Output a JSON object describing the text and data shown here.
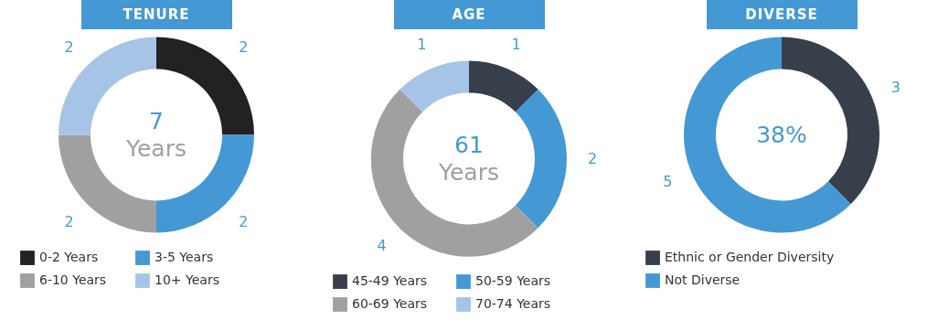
{
  "chart_data": [
    {
      "type": "donut",
      "title": "TENURE",
      "categories": [
        "0-2 Years",
        "3-5 Years",
        "6-10 Years",
        "10+ Years"
      ],
      "values": [
        2,
        2,
        2,
        2
      ],
      "colors": [
        "#222222",
        "#4499d4",
        "#a0a0a0",
        "#a6c4e6"
      ],
      "annotations": [
        "7",
        "Years"
      ],
      "data_labels": true,
      "legend": "bottom"
    },
    {
      "type": "donut",
      "title": "AGE",
      "categories": [
        "45-49 Years",
        "50-59 Years",
        "60-69 Years",
        "70-74 Years"
      ],
      "values": [
        1,
        2,
        4,
        1
      ],
      "colors": [
        "#363f4a",
        "#4499d4",
        "#a0a0a0",
        "#a6c4e6"
      ],
      "annotations": [
        "61",
        "Years"
      ],
      "data_labels": true,
      "legend": "bottom"
    },
    {
      "type": "donut",
      "title": "DIVERSE",
      "categories": [
        "Ethnic or Gender Diversity",
        "Not Diverse"
      ],
      "values": [
        3,
        5
      ],
      "colors": [
        "#363f4a",
        "#4499d4"
      ],
      "annotations": [
        "38%"
      ],
      "data_labels": true,
      "legend": "bottom"
    }
  ]
}
